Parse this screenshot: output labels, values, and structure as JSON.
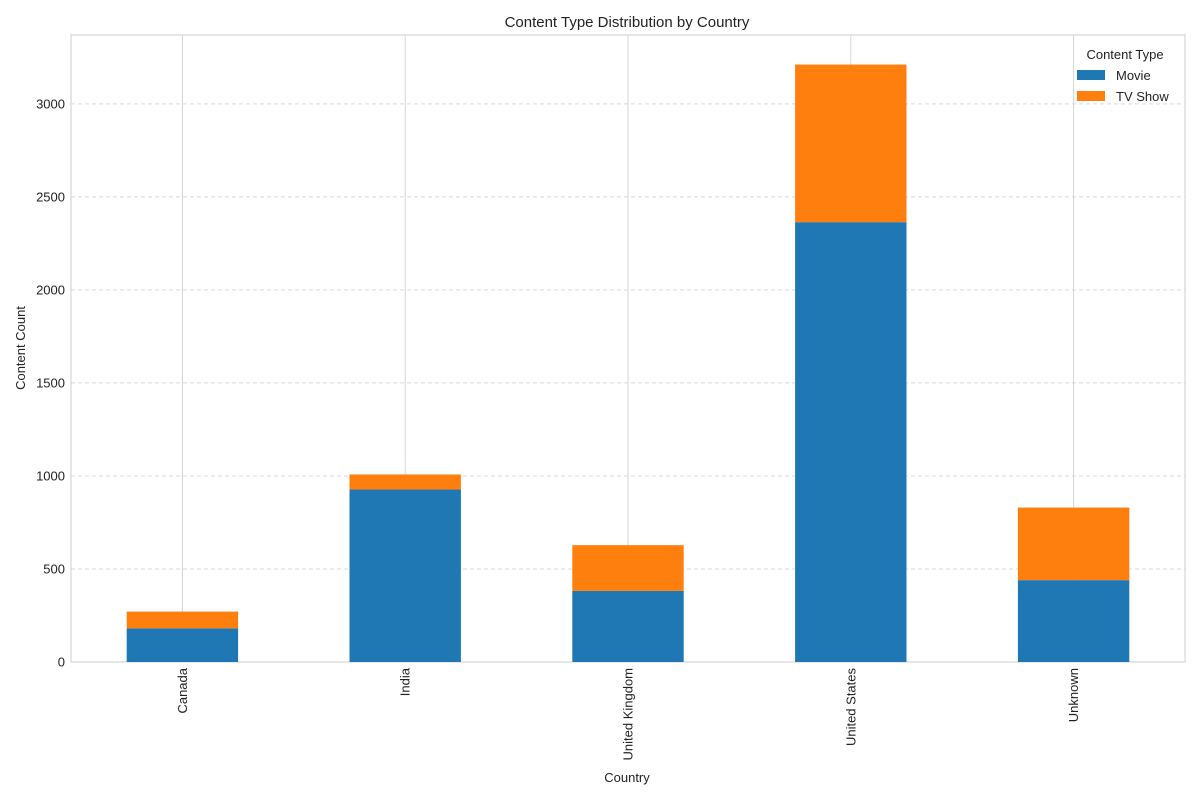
{
  "chart_data": {
    "type": "bar",
    "stacked": true,
    "title": "Content Type Distribution by Country",
    "xlabel": "Country",
    "ylabel": "Content Count",
    "categories": [
      "Canada",
      "India",
      "United Kingdom",
      "United States",
      "Unknown"
    ],
    "series": [
      {
        "name": "Movie",
        "color": "#1f77b4",
        "values": [
          181,
          927,
          382,
          2364,
          440
        ]
      },
      {
        "name": "TV Show",
        "color": "#ff7f0e",
        "values": [
          90,
          81,
          246,
          847,
          390
        ]
      }
    ],
    "ylim": [
      0,
      3370
    ],
    "yticks": [
      0,
      500,
      1000,
      1500,
      2000,
      2500,
      3000
    ],
    "grid": {
      "y": true,
      "x": true
    },
    "legend": {
      "title": "Content Type",
      "placement": "top-right"
    }
  }
}
